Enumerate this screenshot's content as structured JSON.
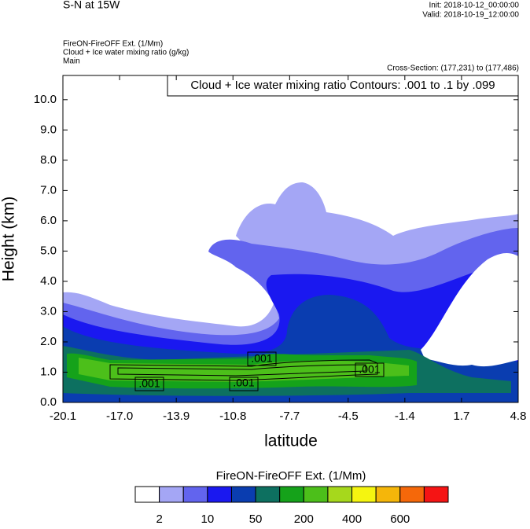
{
  "chart_data": {
    "type": "contour",
    "title": "S-N at 15W",
    "init": "Init: 2018-10-12_00:00:00",
    "valid": "Valid: 2018-10-19_12:00:00",
    "field_name": "FireON-FireOFF Ext.   (1/Mm)",
    "contour_name": "Cloud + Ice water mixing ratio   (g/kg)",
    "subtitle": "Main",
    "cross_section": "Cross-Section: (177,231) to (177,486)",
    "contour_info": "Cloud + Ice water mixing ratio Contours: .001 to .1 by .099",
    "contour_labels": [
      ".001",
      ".001",
      ".001",
      ".001"
    ],
    "x_label": "latitude",
    "y_label": "Height (km)",
    "xlim": [
      -20.1,
      4.8
    ],
    "xticks": [
      -20.1,
      {
        "value": -17,
        "label": "-17.0"
      },
      -13.9,
      -10.8,
      -7.7,
      -4.5,
      -1.4,
      1.7,
      4.8
    ],
    "ylim": [
      0,
      10.8
    ],
    "yticks": [
      {
        "value": 0,
        "label": "0.0"
      },
      {
        "value": 1,
        "label": "1.0"
      },
      {
        "value": 2,
        "label": "2.0"
      },
      {
        "value": 3,
        "label": "3.0"
      },
      {
        "value": 4,
        "label": "4.0"
      },
      {
        "value": 5,
        "label": "5.0"
      },
      {
        "value": 6,
        "label": "6.0"
      },
      {
        "value": 7,
        "label": "7.0"
      },
      {
        "value": 8,
        "label": "8.0"
      },
      {
        "value": 9,
        "label": "9.0"
      },
      {
        "value": 10,
        "label": "10.0"
      }
    ],
    "colorbar": {
      "title": "FireON-FireOFF Ext.  (1/Mm)",
      "colors": [
        "#ffffff",
        "#a4a6f5",
        "#6264ee",
        "#1a18f0",
        "#0a3db0",
        "#0d7060",
        "#15a21a",
        "#4cbf1a",
        "#a6d81c",
        "#f5f510",
        "#f5b60a",
        "#f5680a",
        "#f51414"
      ],
      "levels": [
        2,
        null,
        10,
        null,
        50,
        null,
        200,
        null,
        400,
        null,
        600,
        null
      ]
    }
  }
}
